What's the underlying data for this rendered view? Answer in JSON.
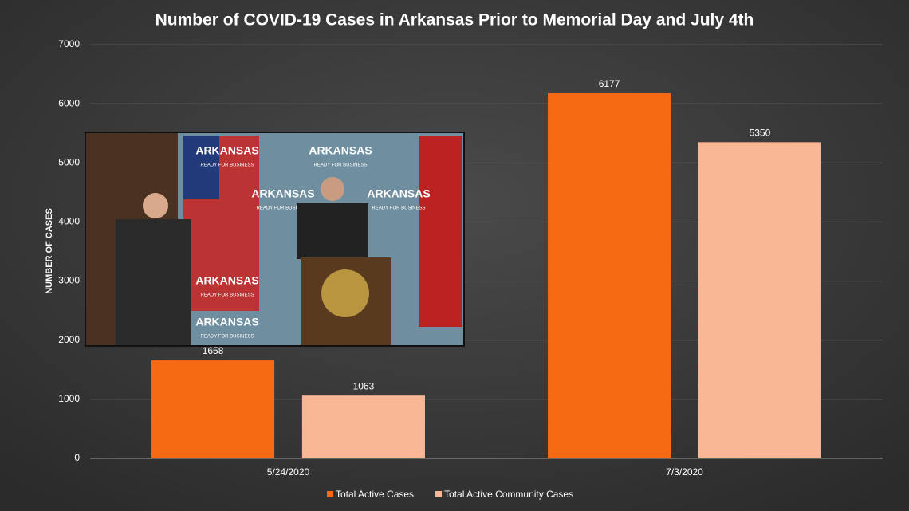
{
  "chart_data": {
    "type": "bar",
    "title": "Number of COVID-19 Cases in Arkansas Prior to Memorial Day and July 4th",
    "y_axis_label": "NUMBER OF CASES",
    "categories": [
      "5/24/2020",
      "7/3/2020"
    ],
    "series": [
      {
        "name": "Total Active Cases",
        "color": "#f76a14",
        "values": [
          1658,
          6177
        ]
      },
      {
        "name": "Total Active Community Cases",
        "color": "#f9b796",
        "values": [
          1063,
          5350
        ]
      }
    ],
    "ylim": [
      0,
      7000
    ],
    "yticks": [
      0,
      1000,
      2000,
      3000,
      4000,
      5000,
      6000,
      7000
    ],
    "grid": true,
    "legend": "bottom",
    "video_overlay": {
      "backdrop_text": [
        "ARKANSAS",
        "READY FOR BUSINESS"
      ]
    }
  }
}
